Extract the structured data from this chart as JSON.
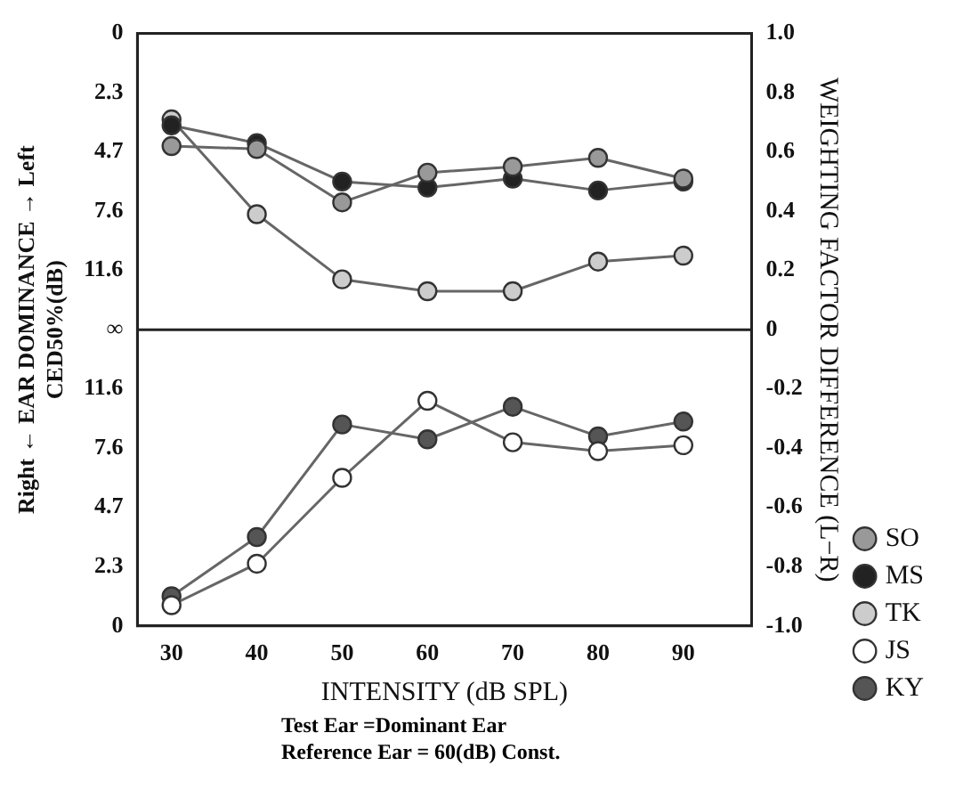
{
  "chart_data": {
    "type": "line",
    "xlabel": "INTENSITY (dB SPL)",
    "ylabel": "WEIGHTING FACTOR DIFFERENCE (L−R)",
    "y2label": "Right ← EAR DOMINANCE → Left",
    "annotations": [
      "CED50%(dB)",
      "Test Ear =Dominant Ear",
      "Reference Ear = 60(dB) Const.",
      "0",
      "2.3",
      "4.7",
      "7.6",
      "11.6",
      "∞",
      "11.6",
      "7.6",
      "4.7",
      "2.3",
      "0"
    ],
    "x": [
      30,
      40,
      50,
      60,
      70,
      80,
      90
    ],
    "xlim": [
      26,
      98
    ],
    "xticks": [
      30,
      40,
      50,
      60,
      70,
      80,
      90
    ],
    "ylim": [
      -1,
      1
    ],
    "yticks": [
      {
        "value": 1,
        "label": "1.0"
      },
      0.8,
      0.6,
      0.4,
      0.2,
      0,
      -0.2,
      -0.4,
      -0.6,
      -0.8,
      {
        "value": -1,
        "label": "-1.0"
      }
    ],
    "ref_lines": [
      {
        "axis": "y",
        "value": 0,
        "color": "#222222"
      }
    ],
    "grid": false,
    "legend": "right",
    "marker": "circle",
    "series": [
      {
        "name": "SO",
        "color": "#999999",
        "values": [
          0.62,
          0.61,
          0.43,
          0.53,
          0.55,
          0.58,
          0.51
        ]
      },
      {
        "name": "MS",
        "color": "#222222",
        "values": [
          0.69,
          0.63,
          0.5,
          0.48,
          0.51,
          0.47,
          0.5
        ]
      },
      {
        "name": "TK",
        "color": "#cccccc",
        "values": [
          0.71,
          0.39,
          0.17,
          0.13,
          0.13,
          0.23,
          0.25
        ]
      },
      {
        "name": "JS",
        "color": "#ffffff",
        "values": [
          -0.93,
          -0.79,
          -0.5,
          -0.24,
          -0.38,
          -0.41,
          -0.39
        ]
      },
      {
        "name": "KY",
        "color": "#555555",
        "values": [
          -0.9,
          -0.7,
          -0.32,
          -0.37,
          -0.26,
          -0.36,
          -0.31
        ]
      }
    ]
  }
}
